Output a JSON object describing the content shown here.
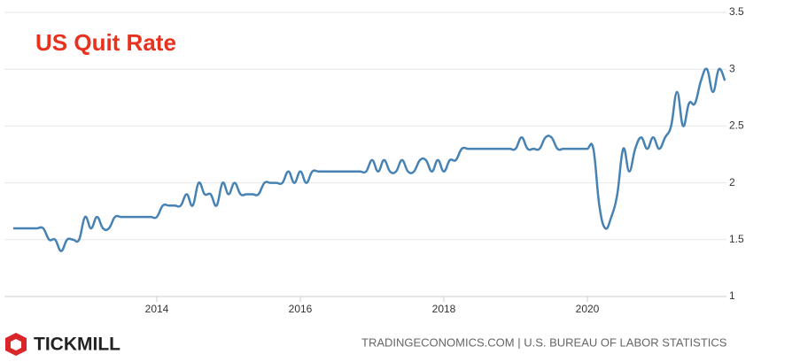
{
  "brand": "TICKMILL",
  "chart_data": {
    "type": "line",
    "title": "US Quit Rate",
    "source": "TRADINGECONOMICS.COM | U.S. BUREAU OF LABOR STATISTICS",
    "categories": [
      null,
      null,
      null,
      null,
      null,
      null,
      null,
      null,
      null,
      null,
      null,
      null,
      null,
      null,
      null,
      null,
      null,
      null,
      null,
      null,
      null,
      null,
      null,
      null,
      "2014",
      null,
      null,
      null,
      null,
      null,
      null,
      null,
      null,
      null,
      null,
      null,
      null,
      null,
      null,
      null,
      null,
      null,
      null,
      null,
      null,
      null,
      null,
      null,
      "2016",
      null,
      null,
      null,
      null,
      null,
      null,
      null,
      null,
      null,
      null,
      null,
      null,
      null,
      null,
      null,
      null,
      null,
      null,
      null,
      null,
      null,
      null,
      null,
      "2018",
      null,
      null,
      null,
      null,
      null,
      null,
      null,
      null,
      null,
      null,
      null,
      null,
      null,
      null,
      null,
      null,
      null,
      null,
      null,
      null,
      null,
      null,
      null,
      "2020",
      null,
      null,
      null,
      null,
      null,
      null,
      null,
      null,
      null,
      null,
      null,
      null,
      null,
      null,
      null,
      null,
      null,
      null,
      null,
      null,
      null,
      null,
      null
    ],
    "values": [
      1.6,
      1.6,
      1.6,
      1.6,
      1.6,
      1.6,
      1.5,
      1.5,
      1.4,
      1.5,
      1.5,
      1.5,
      1.7,
      1.6,
      1.7,
      1.6,
      1.6,
      1.7,
      1.7,
      1.7,
      1.7,
      1.7,
      1.7,
      1.7,
      1.7,
      1.8,
      1.8,
      1.8,
      1.8,
      1.9,
      1.8,
      2.0,
      1.9,
      1.9,
      1.8,
      2.0,
      1.9,
      2.0,
      1.9,
      1.9,
      1.9,
      1.9,
      2.0,
      2.0,
      2.0,
      2.0,
      2.1,
      2.0,
      2.1,
      2.0,
      2.1,
      2.1,
      2.1,
      2.1,
      2.1,
      2.1,
      2.1,
      2.1,
      2.1,
      2.1,
      2.2,
      2.1,
      2.2,
      2.1,
      2.1,
      2.2,
      2.1,
      2.1,
      2.2,
      2.2,
      2.1,
      2.2,
      2.1,
      2.2,
      2.2,
      2.3,
      2.3,
      2.3,
      2.3,
      2.3,
      2.3,
      2.3,
      2.3,
      2.3,
      2.3,
      2.4,
      2.3,
      2.3,
      2.3,
      2.4,
      2.4,
      2.3,
      2.3,
      2.3,
      2.3,
      2.3,
      2.3,
      2.3,
      1.8,
      1.6,
      1.7,
      1.9,
      2.3,
      2.1,
      2.3,
      2.4,
      2.3,
      2.4,
      2.3,
      2.4,
      2.5,
      2.8,
      2.5,
      2.7,
      2.7,
      2.9,
      3.0,
      2.8,
      3.0,
      2.9
    ],
    "color": "#4682b4",
    "ylim": [
      1,
      3.5
    ],
    "yticks": [
      1,
      1.5,
      2,
      2.5,
      3,
      3.5
    ],
    "grid": true
  }
}
